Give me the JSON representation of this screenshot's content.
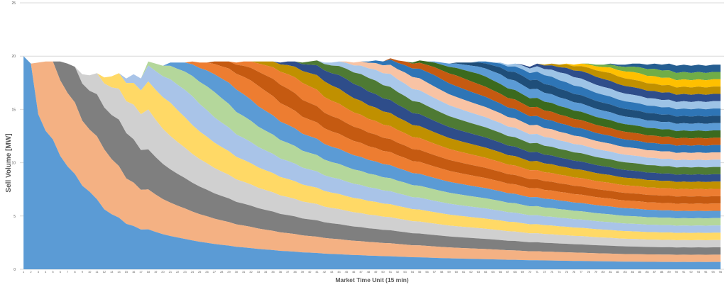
{
  "chart_data": {
    "type": "area",
    "title": "",
    "xlabel": "Market Time Unit (15 min)",
    "ylabel": "Sell Volume [MW]",
    "ylim": [
      0,
      25
    ],
    "y_ticks": [
      0,
      5,
      10,
      15,
      20,
      25
    ],
    "x_ticks": [
      1,
      2,
      3,
      4,
      5,
      6,
      7,
      8,
      9,
      10,
      11,
      12,
      13,
      14,
      15,
      16,
      17,
      18,
      19,
      20,
      21,
      22,
      23,
      24,
      25,
      26,
      27,
      28,
      29,
      30,
      31,
      32,
      33,
      34,
      35,
      36,
      37,
      38,
      39,
      40,
      41,
      42,
      43,
      44,
      45,
      46,
      47,
      48,
      49,
      50,
      51,
      52,
      53,
      54,
      55,
      56,
      57,
      58,
      59,
      60,
      61,
      62,
      63,
      64,
      65,
      66,
      67,
      68,
      69,
      70,
      71,
      72,
      73,
      74,
      75,
      76,
      77,
      78,
      79,
      80,
      81,
      82,
      83,
      84,
      85,
      86,
      87,
      88,
      89,
      90,
      91,
      92,
      93,
      94,
      95,
      96
    ],
    "grid": "horizontal",
    "legend": "none",
    "series_count": 28,
    "total_volume": [
      20,
      19.3,
      19.4,
      19.5,
      19.5,
      19.5,
      19.3,
      19.0,
      18.3,
      18.2,
      18.4,
      18.0,
      18.1,
      18.4,
      17.9,
      18.3,
      17.9,
      19.5,
      19.3,
      19.1,
      19.4,
      19.4,
      19.4,
      19.5,
      19.4,
      19.4,
      19.5,
      19.5,
      19.5,
      19.4,
      19.5,
      19.5,
      19.5,
      19.5,
      19.5,
      19.4,
      19.5,
      19.5,
      19.4,
      19.5,
      19.6,
      19.4,
      19.4,
      19.5,
      19.5,
      19.4,
      19.5,
      19.5,
      19.6,
      19.5,
      19.8,
      19.6,
      19.5,
      19.4,
      19.6,
      19.5,
      19.5,
      19.4,
      19.3,
      19.4,
      19.4,
      19.4,
      19.5,
      19.5,
      19.4,
      19.4,
      19.2,
      19.3,
      19.2,
      19.0,
      19.3,
      19.2,
      19.3,
      19.2,
      19.3,
      19.2,
      19.3,
      19.3,
      19.2,
      19.2,
      19.3,
      19.2,
      19.2,
      19.3,
      19.3,
      19.2,
      19.3,
      19.2,
      19.3,
      19.1,
      19.2,
      19.1,
      19.2,
      19.1,
      19.2,
      19.2
    ],
    "stack_order_colors": [
      "#5b9bd5",
      "#f4b183",
      "#7f7f7f",
      "#d0d0d0",
      "#ffd966",
      "#a9c4e8",
      "#b4d79b",
      "#5b9bd5",
      "#ed7d31",
      "#c55a11",
      "#ed7d31",
      "#c09000",
      "#2e4d8a",
      "#4e7a34",
      "#a9c8ea",
      "#f8c3a4",
      "#2e75b6",
      "#c55a11",
      "#3b6a1e",
      "#5b9bd5",
      "#1f4e79",
      "#2e75b6",
      "#9dc3e6",
      "#2e4d8a",
      "#c09000",
      "#ffc000",
      "#70ad47",
      "#255e91"
    ]
  }
}
